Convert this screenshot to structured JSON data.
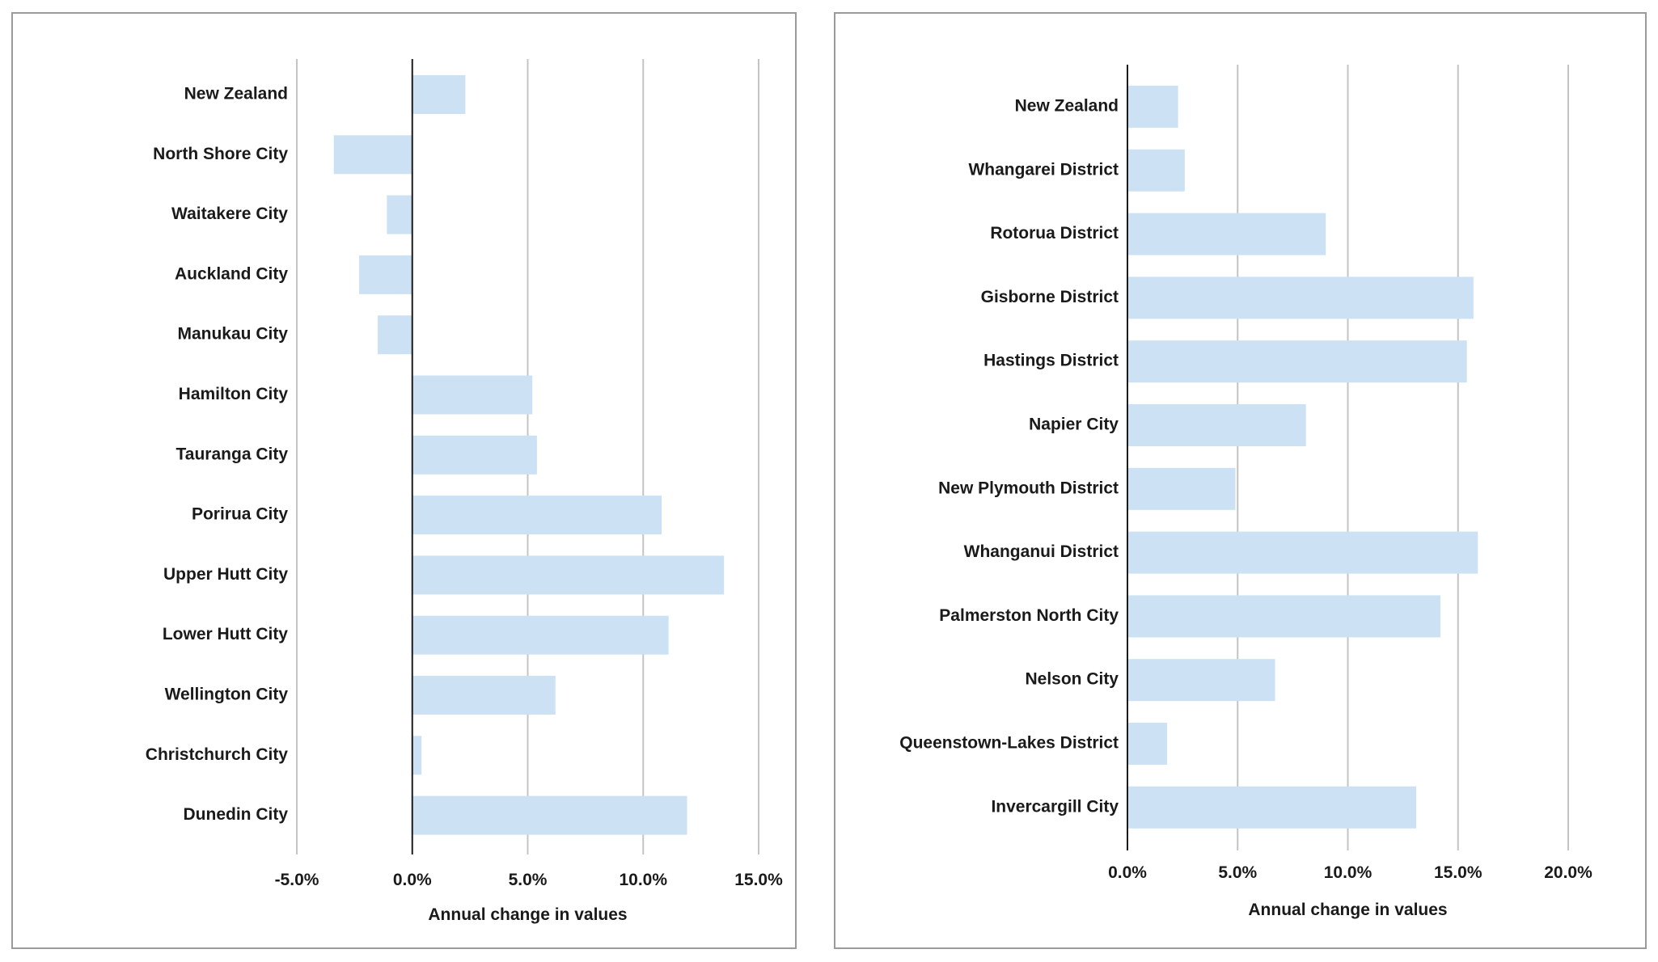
{
  "chart_data": [
    {
      "type": "bar",
      "orientation": "horizontal",
      "categories": [
        "New Zealand",
        "North Shore City",
        "Waitakere City",
        "Auckland City",
        "Manukau City",
        "Hamilton City",
        "Tauranga City",
        "Porirua City",
        "Upper Hutt City",
        "Lower Hutt City",
        "Wellington City",
        "Christchurch City",
        "Dunedin City"
      ],
      "values": [
        2.3,
        -3.4,
        -1.1,
        -2.3,
        -1.5,
        5.2,
        5.4,
        10.8,
        13.5,
        11.1,
        6.2,
        0.4,
        11.9
      ],
      "xlabel": "Annual change in values",
      "ylabel": "",
      "xlim": [
        -5,
        15
      ],
      "ticks": [
        -5,
        0,
        5,
        10,
        15
      ],
      "tick_labels": [
        "-5.0%",
        "0.0%",
        "5.0%",
        "10.0%",
        "15.0%"
      ],
      "grid": "vertical",
      "bar_color": "#cce2f4"
    },
    {
      "type": "bar",
      "orientation": "horizontal",
      "categories": [
        "New Zealand",
        "Whangarei District",
        "Rotorua District",
        "Gisborne District",
        "Hastings District",
        "Napier City",
        "New Plymouth District",
        "Whanganui District",
        "Palmerston North City",
        "Nelson City",
        "Queenstown-Lakes District",
        "Invercargill City"
      ],
      "values": [
        2.3,
        2.6,
        9.0,
        15.7,
        15.4,
        8.1,
        4.9,
        15.9,
        14.2,
        6.7,
        1.8,
        13.1
      ],
      "xlabel": "Annual change in values",
      "ylabel": "",
      "xlim": [
        0,
        20
      ],
      "ticks": [
        0,
        5,
        10,
        15,
        20
      ],
      "tick_labels": [
        "0.0%",
        "5.0%",
        "10.0%",
        "15.0%",
        "20.0%"
      ],
      "grid": "vertical",
      "bar_color": "#cce2f4"
    }
  ]
}
